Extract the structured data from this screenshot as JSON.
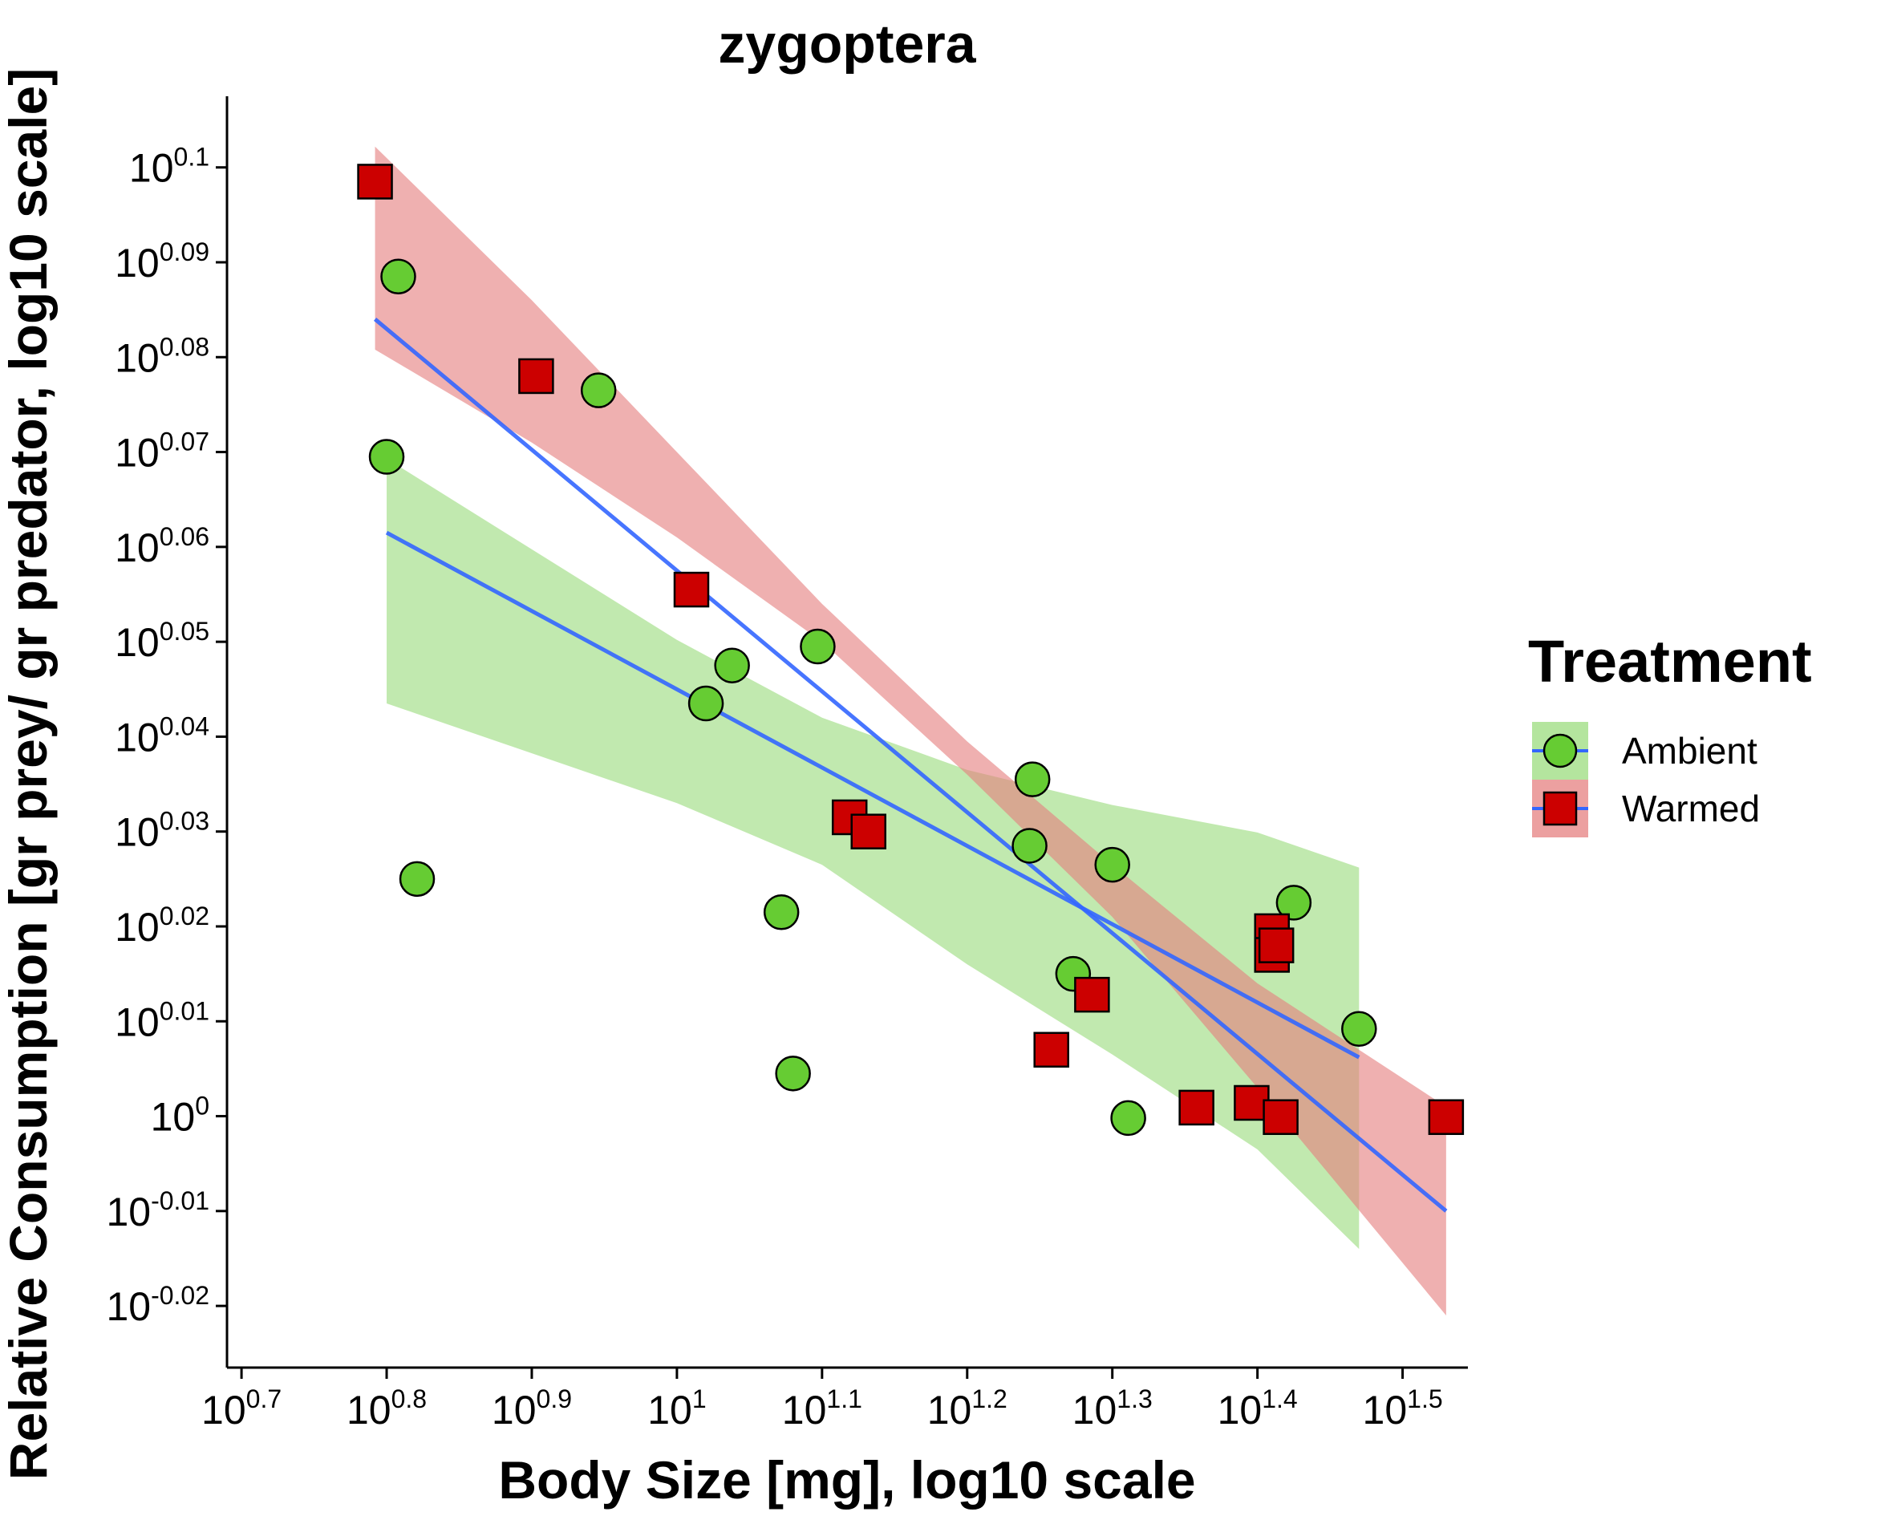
{
  "chart_data": {
    "type": "scatter",
    "title": "zygoptera",
    "xlabel": "Body Size [mg], log10 scale",
    "ylabel": "Relative Consumption [gr prey/ gr predator, log10 scale]",
    "x_scale": "log10",
    "y_scale": "log10",
    "xlim_exponent": [
      0.69,
      1.545
    ],
    "ylim_exponent": [
      -0.0265,
      0.1075
    ],
    "x_ticks": [
      {
        "base": "10",
        "exp": "0.7",
        "value": 0.7
      },
      {
        "base": "10",
        "exp": "0.8",
        "value": 0.8
      },
      {
        "base": "10",
        "exp": "0.9",
        "value": 0.9
      },
      {
        "base": "10",
        "exp": "1",
        "value": 1.0
      },
      {
        "base": "10",
        "exp": "1.1",
        "value": 1.1
      },
      {
        "base": "10",
        "exp": "1.2",
        "value": 1.2
      },
      {
        "base": "10",
        "exp": "1.3",
        "value": 1.3
      },
      {
        "base": "10",
        "exp": "1.4",
        "value": 1.4
      },
      {
        "base": "10",
        "exp": "1.5",
        "value": 1.5
      }
    ],
    "y_ticks": [
      {
        "base": "10",
        "exp": "0.1",
        "value": 0.1
      },
      {
        "base": "10",
        "exp": "0.09",
        "value": 0.09
      },
      {
        "base": "10",
        "exp": "0.08",
        "value": 0.08
      },
      {
        "base": "10",
        "exp": "0.07",
        "value": 0.07
      },
      {
        "base": "10",
        "exp": "0.06",
        "value": 0.06
      },
      {
        "base": "10",
        "exp": "0.05",
        "value": 0.05
      },
      {
        "base": "10",
        "exp": "0.04",
        "value": 0.04
      },
      {
        "base": "10",
        "exp": "0.03",
        "value": 0.03
      },
      {
        "base": "10",
        "exp": "0.02",
        "value": 0.02
      },
      {
        "base": "10",
        "exp": "0.01",
        "value": 0.01
      },
      {
        "base": "10",
        "exp": "0",
        "value": 0.0
      },
      {
        "base": "10",
        "exp": "-0.01",
        "value": -0.01
      },
      {
        "base": "10",
        "exp": "-0.02",
        "value": -0.02
      }
    ],
    "grid": false,
    "legend": {
      "title": "Treatment",
      "position": "right",
      "entries": [
        "Ambient",
        "Warmed"
      ]
    },
    "series": [
      {
        "name": "Ambient",
        "marker": "circle",
        "color": "#66cc33",
        "ribbon_color": "#9bdc7e",
        "line_color": "#3366ff",
        "points": [
          {
            "x": 0.808,
            "y": 0.0885
          },
          {
            "x": 0.8,
            "y": 0.0695
          },
          {
            "x": 0.821,
            "y": 0.025
          },
          {
            "x": 0.946,
            "y": 0.0765
          },
          {
            "x": 1.02,
            "y": 0.0435
          },
          {
            "x": 1.038,
            "y": 0.0475
          },
          {
            "x": 1.097,
            "y": 0.0495
          },
          {
            "x": 1.072,
            "y": 0.0215
          },
          {
            "x": 1.08,
            "y": 0.0045
          },
          {
            "x": 1.245,
            "y": 0.0355
          },
          {
            "x": 1.243,
            "y": 0.0285
          },
          {
            "x": 1.273,
            "y": 0.015
          },
          {
            "x": 1.3,
            "y": 0.0265
          },
          {
            "x": 1.311,
            "y": -0.0002
          },
          {
            "x": 1.425,
            "y": 0.0225
          },
          {
            "x": 1.47,
            "y": 0.0092
          }
        ],
        "fit_line": [
          [
            0.8,
            0.0615
          ],
          [
            1.47,
            0.0062
          ]
        ],
        "ribbon_upper": [
          [
            0.8,
            0.0693
          ],
          [
            1.0,
            0.0502
          ],
          [
            1.1,
            0.042
          ],
          [
            1.2,
            0.0365
          ],
          [
            1.3,
            0.0328
          ],
          [
            1.4,
            0.0299
          ],
          [
            1.47,
            0.0262
          ]
        ],
        "ribbon_lower": [
          [
            0.8,
            0.0435
          ],
          [
            1.0,
            0.033
          ],
          [
            1.1,
            0.0265
          ],
          [
            1.2,
            0.016
          ],
          [
            1.3,
            0.0065
          ],
          [
            1.4,
            -0.0035
          ],
          [
            1.47,
            -0.014
          ]
        ]
      },
      {
        "name": "Warmed",
        "marker": "square",
        "color": "#cc0000",
        "ribbon_color": "#e58080",
        "line_color": "#3366ff",
        "points": [
          {
            "x": 0.792,
            "y": 0.0985
          },
          {
            "x": 0.903,
            "y": 0.078
          },
          {
            "x": 1.01,
            "y": 0.0555
          },
          {
            "x": 1.119,
            "y": 0.0315
          },
          {
            "x": 1.132,
            "y": 0.03
          },
          {
            "x": 1.258,
            "y": 0.007
          },
          {
            "x": 1.286,
            "y": 0.0128
          },
          {
            "x": 1.358,
            "y": 0.0009
          },
          {
            "x": 1.396,
            "y": 0.0014
          },
          {
            "x": 1.41,
            "y": 0.0195
          },
          {
            "x": 1.41,
            "y": 0.017
          },
          {
            "x": 1.413,
            "y": 0.018
          },
          {
            "x": 1.416,
            "y": -0.0001
          },
          {
            "x": 1.53,
            "y": -0.0001
          }
        ],
        "fit_line": [
          [
            0.792,
            0.084
          ],
          [
            1.53,
            -0.01
          ]
        ],
        "ribbon_upper": [
          [
            0.792,
            0.1022
          ],
          [
            0.9,
            0.086
          ],
          [
            1.0,
            0.07
          ],
          [
            1.1,
            0.054
          ],
          [
            1.2,
            0.0395
          ],
          [
            1.3,
            0.0265
          ],
          [
            1.4,
            0.014
          ],
          [
            1.53,
            0.001
          ]
        ],
        "ribbon_lower": [
          [
            0.792,
            0.0808
          ],
          [
            0.9,
            0.071
          ],
          [
            1.0,
            0.061
          ],
          [
            1.1,
            0.05
          ],
          [
            1.2,
            0.036
          ],
          [
            1.3,
            0.021
          ],
          [
            1.4,
            0.003
          ],
          [
            1.53,
            -0.021
          ]
        ]
      }
    ]
  }
}
